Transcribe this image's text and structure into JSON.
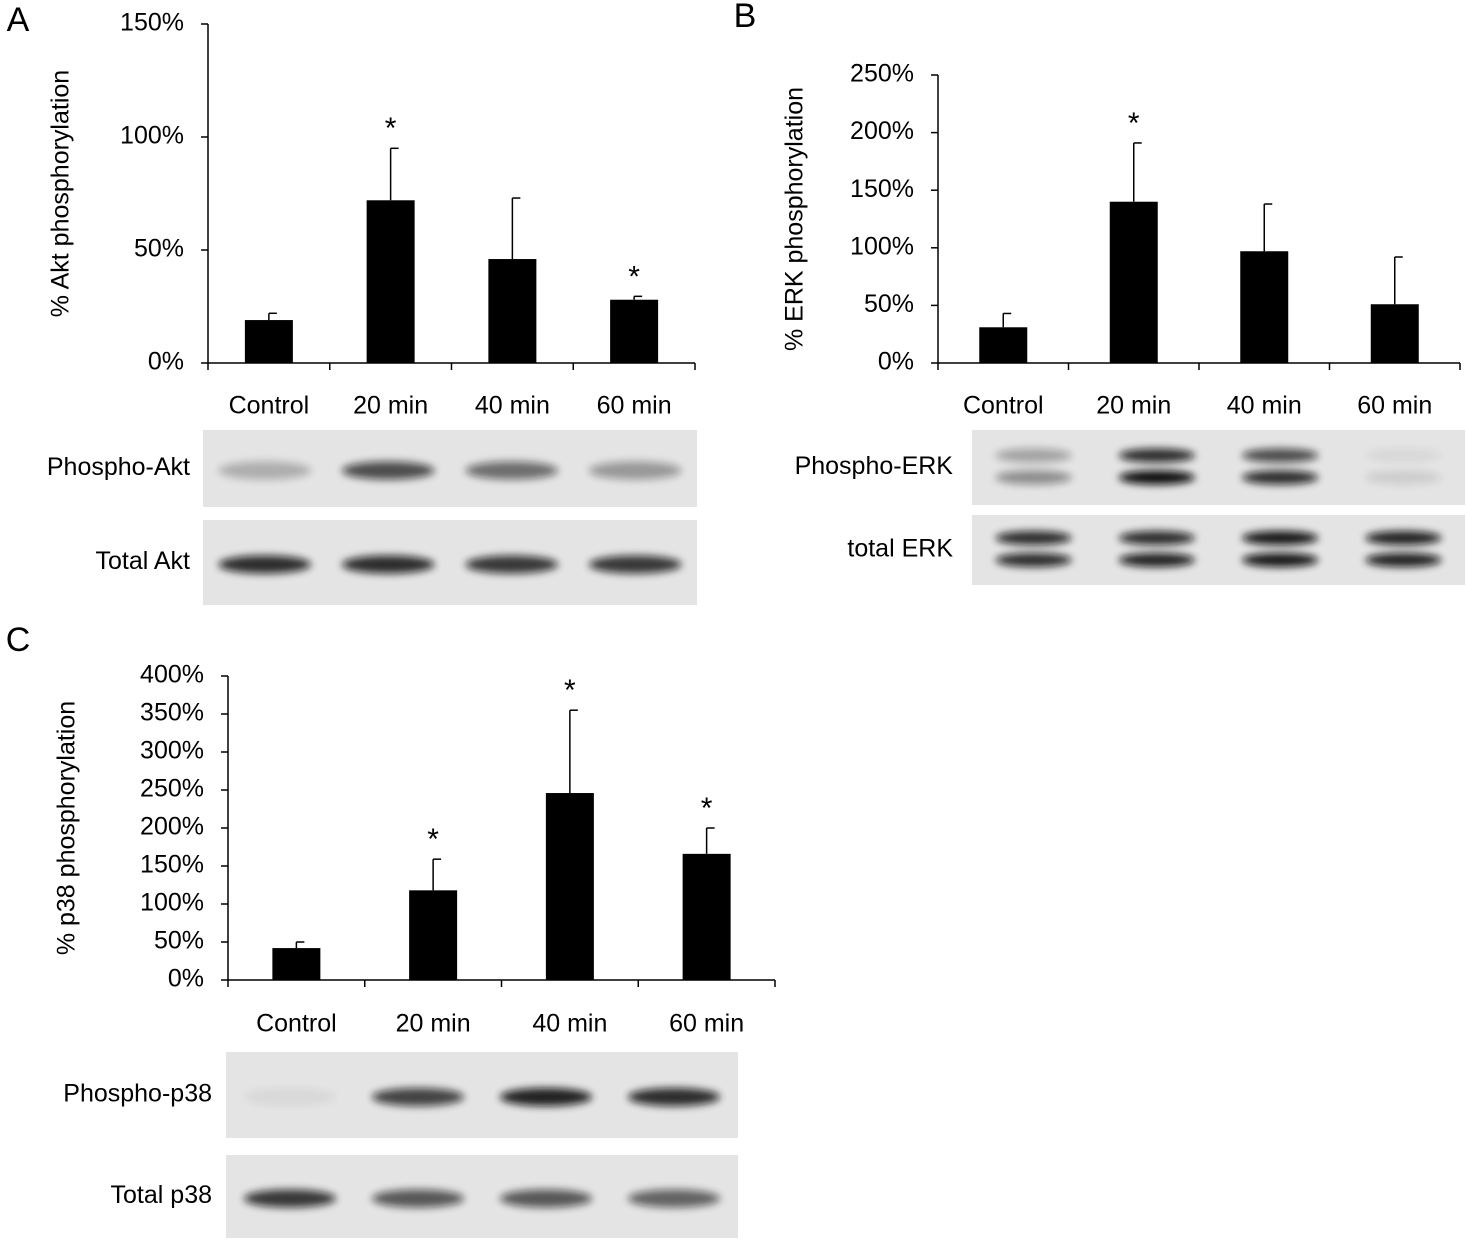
{
  "chart_data": [
    {
      "type": "bar",
      "panel": "A",
      "ylabel": "% Akt phosphorylation",
      "categories": [
        "Control",
        "20 min",
        "40 min",
        "60 min"
      ],
      "values": [
        19,
        72,
        46,
        28
      ],
      "errors": [
        3,
        23,
        27,
        1.5
      ],
      "color": "#000000",
      "significance": [
        null,
        "*",
        null,
        "*"
      ],
      "ylim": [
        0,
        150
      ],
      "yticks": [
        {
          "value": 0,
          "label": "0%"
        },
        {
          "value": 50,
          "label": "50%"
        },
        {
          "value": 100,
          "label": "100%"
        },
        {
          "value": 150,
          "label": "150%"
        }
      ],
      "blot_labels": [
        "Phospho-Akt",
        "Total Akt"
      ]
    },
    {
      "type": "bar",
      "panel": "B",
      "ylabel": "% ERK phosphorylation",
      "categories": [
        "Control",
        "20 min",
        "40 min",
        "60 min"
      ],
      "values": [
        31,
        140,
        97,
        51
      ],
      "errors": [
        12,
        51,
        41,
        41
      ],
      "color": "#000000",
      "significance": [
        null,
        "*",
        null,
        null
      ],
      "ylim": [
        0,
        250
      ],
      "yticks": [
        {
          "value": 0,
          "label": "0%"
        },
        {
          "value": 50,
          "label": "50%"
        },
        {
          "value": 100,
          "label": "100%"
        },
        {
          "value": 150,
          "label": "150%"
        },
        {
          "value": 200,
          "label": "200%"
        },
        {
          "value": 250,
          "label": "250%"
        }
      ],
      "blot_labels": [
        "Phospho-ERK",
        "total ERK"
      ]
    },
    {
      "type": "bar",
      "panel": "C",
      "ylabel": "% p38 phosphorylation",
      "categories": [
        "Control",
        "20 min",
        "40 min",
        "60 min"
      ],
      "values": [
        42,
        118,
        246,
        166
      ],
      "errors": [
        8,
        41,
        109,
        34
      ],
      "color": "#000000",
      "significance": [
        null,
        "*",
        "*",
        "*"
      ],
      "ylim": [
        0,
        400
      ],
      "yticks": [
        {
          "value": 0,
          "label": "0%"
        },
        {
          "value": 50,
          "label": "50%"
        },
        {
          "value": 100,
          "label": "100%"
        },
        {
          "value": 150,
          "label": "150%"
        },
        {
          "value": 200,
          "label": "200%"
        },
        {
          "value": 250,
          "label": "250%"
        },
        {
          "value": 300,
          "label": "300%"
        },
        {
          "value": 350,
          "label": "350%"
        },
        {
          "value": 400,
          "label": "400%"
        }
      ],
      "blot_labels": [
        "Phospho-p38",
        "Total p38"
      ]
    }
  ]
}
